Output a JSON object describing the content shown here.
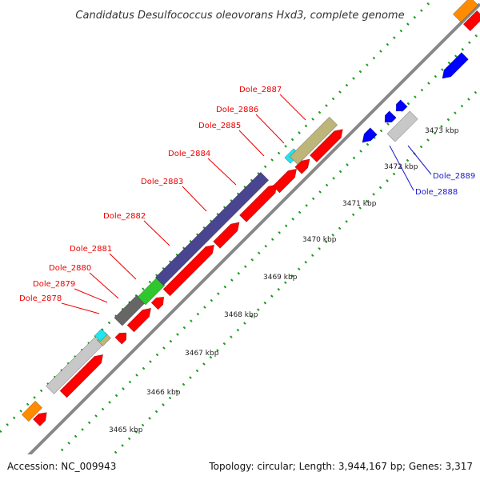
{
  "header": {
    "title": "Candidatus Desulfococcus oleovorans Hxd3, complete genome"
  },
  "footer": {
    "accession": "Accession: NC_009943",
    "summary": "Topology: circular; Length: 3,944,167 bp; Genes: 3,317"
  },
  "colors": {
    "forward_gene": "#ff0000",
    "reverse_gene": "#0000ff",
    "backbone": "#888888",
    "grid_dots": "#1a9a1a",
    "label_forward": "#ee0000",
    "label_reverse": "#1a1acc",
    "cog_purple": "#4a4590",
    "cog_khaki": "#bdb57a",
    "cog_cyan": "#22e5ee",
    "cog_green": "#2ec82e",
    "cog_gray": "#666666",
    "cog_lightgray": "#c8c8c8",
    "cog_orange": "#ff8c00"
  },
  "scale_ticks": [
    "3465 kbp",
    "3466 kbp",
    "3467 kbp",
    "3468 kbp",
    "3469 kbp",
    "3470 kbp",
    "3471 kbp",
    "3472 kbp",
    "3473 kbp"
  ],
  "gene_labels_forward": [
    "Dole_2878",
    "Dole_2879",
    "Dole_2880",
    "Dole_2881",
    "Dole_2882",
    "Dole_2883",
    "Dole_2884",
    "Dole_2885",
    "Dole_2886",
    "Dole_2887"
  ],
  "gene_labels_reverse": [
    "Dole_2888",
    "Dole_2889"
  ]
}
